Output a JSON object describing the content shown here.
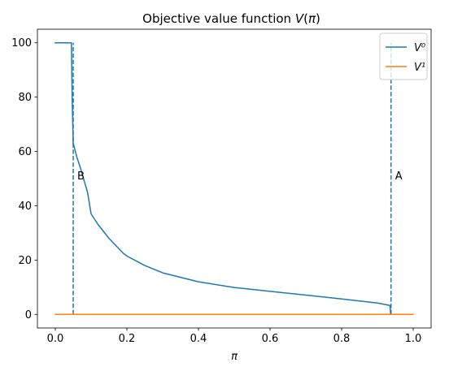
{
  "chart_data": {
    "type": "line",
    "title": "Objective value function V(π)",
    "xlabel": "π",
    "ylabel": "",
    "xlim": [
      -0.05,
      1.05
    ],
    "ylim": [
      -5,
      105
    ],
    "xticks": [
      0.0,
      0.2,
      0.4,
      0.6,
      0.8,
      1.0
    ],
    "xtick_labels": [
      "0.0",
      "0.2",
      "0.4",
      "0.6",
      "0.8",
      "1.0"
    ],
    "yticks": [
      0,
      20,
      40,
      60,
      80,
      100
    ],
    "ytick_labels": [
      "0",
      "20",
      "40",
      "60",
      "80",
      "100"
    ],
    "grid": false,
    "legend_position": "top-right",
    "series": [
      {
        "name": "V⁰",
        "color": "#1f77b4",
        "x": [
          0.0,
          0.04,
          0.045,
          0.047,
          0.05,
          0.06,
          0.07,
          0.08,
          0.09,
          0.1,
          0.12,
          0.15,
          0.19,
          0.2,
          0.25,
          0.3,
          0.4,
          0.5,
          0.6,
          0.7,
          0.8,
          0.9,
          0.935,
          0.937
        ],
        "y": [
          100,
          100,
          100,
          80,
          63,
          58,
          54,
          49.5,
          45,
          37,
          33,
          28,
          22.5,
          21.5,
          18,
          15.3,
          12,
          9.9,
          8.5,
          7.1,
          5.7,
          4.2,
          3.3,
          0
        ]
      },
      {
        "name": "V¹",
        "color": "#ff7f0e",
        "x": [
          0.0,
          1.0
        ],
        "y": [
          0,
          0
        ]
      }
    ],
    "vlines": [
      {
        "x": 0.05,
        "ymin": 0,
        "ymax": 100,
        "label": "B",
        "label_y": 51,
        "color": "#1f77b4"
      },
      {
        "x": 0.938,
        "ymin": 0,
        "ymax": 100,
        "label": "A",
        "label_y": 51,
        "color": "#1f77b4"
      }
    ]
  }
}
